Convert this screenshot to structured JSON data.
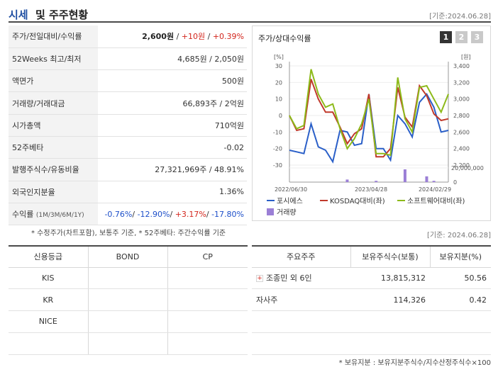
{
  "header": {
    "title_a": "시세",
    "title_b": "및 주주현황",
    "date": "[기준:2024.06.28]"
  },
  "quote": [
    {
      "key": "주가/전일대비/수익률",
      "v1": "2,600원",
      "s1": " / ",
      "v2": "+10원",
      "s2": " / ",
      "v3": "+0.39%"
    },
    {
      "key": "52Weeks 최고/최저",
      "value": "4,685원 / 2,050원"
    },
    {
      "key": "액면가",
      "value": "500원"
    },
    {
      "key": "거래량/거래대금",
      "value": "66,893주 / 2억원"
    },
    {
      "key": "시가총액",
      "value": "710억원"
    },
    {
      "key": "52주베타",
      "value": "-0.02"
    },
    {
      "key": "발행주식수/유동비율",
      "value": "27,321,969주 / 48.91%"
    },
    {
      "key": "외국인지분율",
      "value": "1.36%"
    },
    {
      "key": "수익률",
      "key_sub": "(1M/3M/6M/1Y)",
      "r1": "-0.76%",
      "r2": "-12.90%",
      "r3": "+3.17%",
      "r4": "-17.80%",
      "sep": "/ "
    }
  ],
  "note1": "* 수정주가(차트포함), 보통주 기준, * 52주베타: 주간수익률 기준",
  "chart_panel": {
    "title": "주가/상대수익률",
    "tabs": [
      "1",
      "2",
      "3"
    ]
  },
  "chart_data": {
    "type": "line",
    "yunit_left": "[%]",
    "yunit_right": "[원]",
    "ylim_left": [
      -30,
      30
    ],
    "ylim_right": [
      2200,
      3400
    ],
    "left_ticks": [
      "30",
      "20",
      "10",
      "0",
      "-10",
      "-20",
      "-30"
    ],
    "right_ticks": [
      "3,400",
      "3,200",
      "3,000",
      "2,800",
      "2,600",
      "2,400",
      "2,200"
    ],
    "volume_tick": "20,000,000",
    "volume_zero": "0",
    "x_labels": [
      "2022/06/30",
      "2023/04/28",
      "2024/02/29"
    ],
    "series": [
      {
        "name": "포시에스",
        "color": "#2a5fc8",
        "axis": "left",
        "values": [
          -21,
          -22,
          -23,
          -5,
          -19,
          -21,
          -28,
          -9,
          -10,
          -18,
          -17,
          13,
          -20,
          -20,
          -27,
          0,
          -5,
          -13,
          8,
          13,
          5,
          -10,
          -9
        ]
      },
      {
        "name": "KOSDAQ대비(좌)",
        "color": "#c0392b",
        "axis": "left",
        "values": [
          0,
          -9,
          -8,
          22,
          10,
          2,
          2,
          -7,
          -17,
          -11,
          -8,
          13,
          -25,
          -25,
          -20,
          17,
          -1,
          -7,
          18,
          12,
          1,
          -3,
          -2
        ]
      },
      {
        "name": "소프트웨어대비(좌)",
        "color": "#8dba1a",
        "axis": "left",
        "values": [
          0,
          -8,
          -6,
          28,
          13,
          5,
          7,
          -8,
          -20,
          -14,
          -5,
          10,
          -23,
          -23,
          -24,
          23,
          -2,
          -10,
          17,
          18,
          10,
          2,
          13
        ]
      }
    ],
    "volume": {
      "name": "거래량",
      "color": "#9b7fd6",
      "bars": [
        0,
        0,
        0,
        0,
        0,
        0,
        0,
        0,
        0.2,
        0,
        0,
        0,
        0.1,
        0,
        0,
        0,
        1,
        0,
        0,
        0.45,
        0.1,
        0,
        0
      ]
    }
  },
  "date2": "[기준: 2024.06.28]",
  "credit": {
    "headers": [
      "신용등급",
      "BOND",
      "CP"
    ],
    "rows": [
      [
        "KIS",
        "",
        ""
      ],
      [
        "KR",
        "",
        ""
      ],
      [
        "NICE",
        "",
        ""
      ],
      [
        "",
        "",
        ""
      ]
    ]
  },
  "holders": {
    "headers": [
      "주요주주",
      "보유주식수(보통)",
      "보유지분(%)"
    ],
    "rows": [
      {
        "name": "조종민 외 6인",
        "shares": "13,815,312",
        "pct": "50.56",
        "expand": "+"
      },
      {
        "name": "자사주",
        "shares": "114,326",
        "pct": "0.42"
      },
      {
        "name": "",
        "shares": "",
        "pct": ""
      },
      {
        "name": "",
        "shares": "",
        "pct": ""
      }
    ]
  },
  "note2": "* 보유지분 : 보유지분주식수/지수산정주식수×100"
}
